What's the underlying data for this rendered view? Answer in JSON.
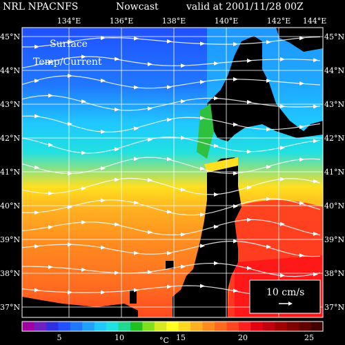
{
  "header": {
    "model": "NRL NPACNFS",
    "product": "Nowcast",
    "valid": "valid at 2001/11/28 00Z"
  },
  "overlay": {
    "line1": "Surface",
    "line2": "Temp/Current"
  },
  "axes": {
    "lon_labels": [
      "134°E",
      "136°E",
      "138°E",
      "140°E",
      "142°E",
      "144°E"
    ],
    "lat_labels": [
      "45°N",
      "44°N",
      "43°N",
      "42°N",
      "41°N",
      "40°N",
      "39°N",
      "38°N",
      "37°N"
    ]
  },
  "legend": {
    "scale_text": "10 cm/s",
    "colorbar_ticks": [
      "5",
      "10",
      "15",
      "20",
      "25"
    ],
    "colorbar_unit": "°C",
    "colors": [
      "#a000a0",
      "#7020c0",
      "#3030e0",
      "#2050ff",
      "#2078ff",
      "#20a0ff",
      "#20c8ff",
      "#20e0e0",
      "#20d890",
      "#20c020",
      "#80e020",
      "#d8e820",
      "#ffff20",
      "#ffd820",
      "#ffb020",
      "#ff8a20",
      "#ff6a20",
      "#ff4820",
      "#ff2020",
      "#e00010",
      "#c00010",
      "#a00000",
      "#800000",
      "#600000",
      "#400000"
    ]
  },
  "map": {
    "lon_range": [
      133,
      145
    ],
    "lat_range": [
      36.6,
      45.3
    ],
    "land_color": "#000000",
    "grid_color": "#ffffff"
  }
}
